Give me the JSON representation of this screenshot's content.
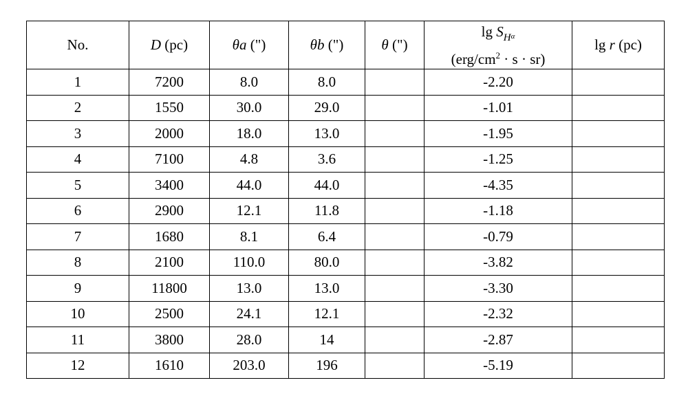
{
  "headers": {
    "no": "No.",
    "d_sym": "D",
    "d_unit": " (pc)",
    "ta_sym": "θa",
    "ta_unit": " (\")",
    "tb_sym": "θb",
    "tb_unit": " (\")",
    "t_sym": "θ",
    "t_unit": " (\")",
    "s_lg": "lg ",
    "s_sym": "S",
    "s_sub": "H",
    "s_subsub": "α",
    "s_unit_pre": "(erg/cm",
    "s_unit_sup": "2",
    "s_unit_post": " · s · sr)",
    "r_lg": "lg ",
    "r_sym": "r",
    "r_unit": " (pc)"
  },
  "rows": [
    {
      "no": "1",
      "d": "7200",
      "ta": "8.0",
      "tb": "8.0",
      "t": "",
      "s": "-2.20",
      "r": ""
    },
    {
      "no": "2",
      "d": "1550",
      "ta": "30.0",
      "tb": "29.0",
      "t": "",
      "s": "-1.01",
      "r": ""
    },
    {
      "no": "3",
      "d": "2000",
      "ta": "18.0",
      "tb": "13.0",
      "t": "",
      "s": "-1.95",
      "r": ""
    },
    {
      "no": "4",
      "d": "7100",
      "ta": "4.8",
      "tb": "3.6",
      "t": "",
      "s": "-1.25",
      "r": ""
    },
    {
      "no": "5",
      "d": "3400",
      "ta": "44.0",
      "tb": "44.0",
      "t": "",
      "s": "-4.35",
      "r": ""
    },
    {
      "no": "6",
      "d": "2900",
      "ta": "12.1",
      "tb": "11.8",
      "t": "",
      "s": "-1.18",
      "r": ""
    },
    {
      "no": "7",
      "d": "1680",
      "ta": "8.1",
      "tb": "6.4",
      "t": "",
      "s": "-0.79",
      "r": ""
    },
    {
      "no": "8",
      "d": "2100",
      "ta": "110.0",
      "tb": "80.0",
      "t": "",
      "s": "-3.82",
      "r": ""
    },
    {
      "no": "9",
      "d": "11800",
      "ta": "13.0",
      "tb": "13.0",
      "t": "",
      "s": "-3.30",
      "r": ""
    },
    {
      "no": "10",
      "d": "2500",
      "ta": "24.1",
      "tb": "12.1",
      "t": "",
      "s": "-2.32",
      "r": ""
    },
    {
      "no": "11",
      "d": "3800",
      "ta": "28.0",
      "tb": "14",
      "t": "",
      "s": "-2.87",
      "r": ""
    },
    {
      "no": "12",
      "d": "1610",
      "ta": "203.0",
      "tb": "196",
      "t": "",
      "s": "-5.19",
      "r": ""
    }
  ]
}
